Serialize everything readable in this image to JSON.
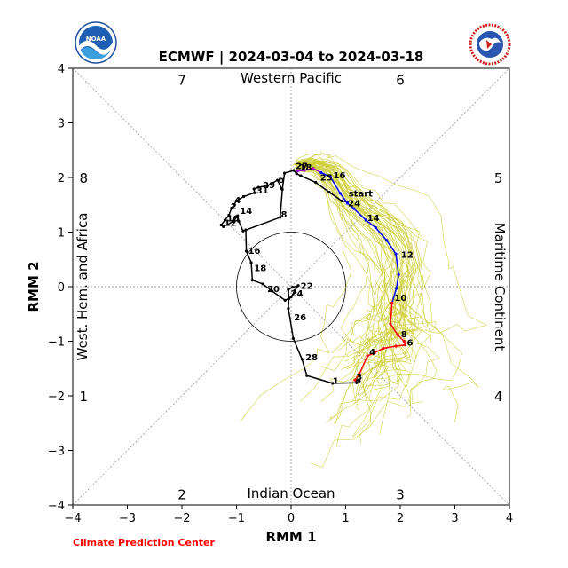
{
  "header": {
    "title": "ECMWF | 2024-03-04 to 2024-03-18",
    "credit": "Climate Prediction Center"
  },
  "chart_data": {
    "type": "line",
    "title": "ECMWF | 2024-03-04 to 2024-03-18",
    "xlabel": "RMM 1",
    "ylabel": "RMM 2",
    "xlim": [
      -4,
      4
    ],
    "ylim": [
      -4,
      4
    ],
    "xticks": [
      -4,
      -3,
      -2,
      -1,
      0,
      1,
      2,
      3,
      4
    ],
    "yticks": [
      -4,
      -3,
      -2,
      -1,
      0,
      1,
      2,
      3,
      4
    ],
    "grid": false,
    "phase_numbers": [
      {
        "label": "7",
        "x": -2.0,
        "y": 3.8
      },
      {
        "label": "6",
        "x": 2.0,
        "y": 3.8
      },
      {
        "label": "8",
        "x": -3.8,
        "y": 2.0
      },
      {
        "label": "5",
        "x": 3.8,
        "y": 2.0
      },
      {
        "label": "1",
        "x": -3.8,
        "y": -2.0
      },
      {
        "label": "4",
        "x": 3.8,
        "y": -2.0
      },
      {
        "label": "2",
        "x": -2.0,
        "y": -3.8
      },
      {
        "label": "3",
        "x": 2.0,
        "y": -3.8
      }
    ],
    "region_labels": {
      "top": "Western Pacific",
      "bottom": "Indian Ocean",
      "left": "West. Hem. and Africa",
      "right": "Maritime Continent"
    },
    "observed": {
      "name": "observed",
      "color": "#000000",
      "points": [
        {
          "x": -0.17,
          "y": 1.79
        },
        {
          "x": -0.25,
          "y": 1.95
        },
        {
          "x": -0.33,
          "y": 1.85
        },
        {
          "x": -0.52,
          "y": 1.8
        },
        {
          "x": -0.68,
          "y": 1.82
        },
        {
          "x": -0.67,
          "y": 1.74
        },
        {
          "x": -0.87,
          "y": 1.62
        },
        {
          "x": -0.98,
          "y": 1.56
        },
        {
          "x": -1.08,
          "y": 1.41
        },
        {
          "x": -1.16,
          "y": 1.27
        },
        {
          "x": -1.23,
          "y": 1.18
        },
        {
          "x": -1.28,
          "y": 1.13
        },
        {
          "x": -1.3,
          "y": 1.08
        },
        {
          "x": -1.08,
          "y": 1.32
        },
        {
          "x": -0.98,
          "y": 1.31
        },
        {
          "x": -0.85,
          "y": 1.0
        },
        {
          "x": -0.64,
          "y": 1.12
        },
        {
          "x": -0.2,
          "y": 1.25
        },
        {
          "x": -0.18,
          "y": 1.3
        },
        {
          "x": -0.12,
          "y": 1.88
        },
        {
          "x": -0.08,
          "y": 1.94
        },
        {
          "x": -0.04,
          "y": 1.99
        },
        {
          "x": 0.0,
          "y": 2.07
        },
        {
          "x": 0.08,
          "y": 2.12
        },
        {
          "x": 0.12,
          "y": 2.1
        },
        {
          "x": 0.15,
          "y": 2.04
        },
        {
          "x": 0.4,
          "y": 1.92
        },
        {
          "x": 0.65,
          "y": 1.76
        },
        {
          "x": 0.85,
          "y": 1.6
        },
        {
          "x": 1.02,
          "y": 1.53
        },
        {
          "x": 0.6,
          "y": 1.62
        }
      ],
      "path": [
        [
          -0.17,
          1.79
        ],
        [
          -0.25,
          1.95
        ],
        [
          -0.43,
          1.85
        ],
        [
          -0.6,
          1.82
        ],
        [
          -0.68,
          1.79
        ],
        [
          -0.67,
          1.72
        ],
        [
          -0.87,
          1.65
        ],
        [
          -1.0,
          1.57
        ],
        [
          -1.09,
          1.44
        ],
        [
          -1.14,
          1.31
        ],
        [
          -1.21,
          1.22
        ],
        [
          -1.28,
          1.13
        ],
        [
          -1.24,
          1.1
        ],
        [
          -1.05,
          1.2
        ],
        [
          -0.98,
          1.3
        ],
        [
          -0.96,
          1.2
        ],
        [
          -0.88,
          1.02
        ],
        [
          -0.2,
          1.27
        ],
        [
          -0.16,
          1.78
        ],
        [
          -0.12,
          2.08
        ],
        [
          0.05,
          2.13
        ],
        [
          0.1,
          2.07
        ],
        [
          0.18,
          2.03
        ],
        [
          0.45,
          1.91
        ],
        [
          0.7,
          1.73
        ],
        [
          0.93,
          1.57
        ],
        [
          1.03,
          1.55
        ]
      ],
      "labels": [
        {
          "text": "27",
          "x": 0.05,
          "y": 2.2
        },
        {
          "text": "29",
          "x": -0.55,
          "y": 1.85
        },
        {
          "text": "31",
          "x": -0.67,
          "y": 1.76
        },
        {
          "text": "6",
          "x": -0.27,
          "y": 1.95
        },
        {
          "text": "4",
          "x": -1.07,
          "y": 1.58
        },
        {
          "text": "2",
          "x": -1.14,
          "y": 1.46
        },
        {
          "text": "14",
          "x": -0.97,
          "y": 1.38
        },
        {
          "text": "10",
          "x": -1.21,
          "y": 1.24
        },
        {
          "text": "12",
          "x": -1.26,
          "y": 1.16
        },
        {
          "text": "8",
          "x": -0.22,
          "y": 1.32
        },
        {
          "text": "25",
          "x": 0.5,
          "y": 1.99
        }
      ]
    },
    "observed_lower": {
      "name": "observed",
      "color": "#000000",
      "path": [
        [
          -0.83,
          1.04
        ],
        [
          -0.82,
          0.65
        ],
        [
          -0.73,
          0.44
        ],
        [
          -0.71,
          0.12
        ],
        [
          -0.52,
          0.05
        ],
        [
          -0.35,
          -0.08
        ],
        [
          -0.11,
          -0.25
        ],
        [
          0.0,
          -0.19
        ],
        [
          0.07,
          -0.07
        ],
        [
          0.13,
          0.02
        ],
        [
          0.03,
          -0.01
        ],
        [
          -0.05,
          -0.05
        ],
        [
          -0.04,
          -0.22
        ],
        [
          -0.05,
          -0.4
        ],
        [
          0.04,
          -0.95
        ],
        [
          0.2,
          -1.33
        ],
        [
          0.29,
          -1.63
        ],
        [
          0.76,
          -1.77
        ],
        [
          1.2,
          -1.76
        ],
        [
          1.18,
          -1.71
        ],
        [
          1.25,
          -1.73
        ]
      ],
      "labels": [
        {
          "text": "16",
          "x": -0.82,
          "y": 0.65
        },
        {
          "text": "18",
          "x": -0.71,
          "y": 0.33
        },
        {
          "text": "20",
          "x": -0.47,
          "y": -0.05
        },
        {
          "text": "22",
          "x": 0.14,
          "y": 0.01
        },
        {
          "text": "24",
          "x": -0.04,
          "y": -0.13
        },
        {
          "text": "26",
          "x": 0.02,
          "y": -0.57
        },
        {
          "text": "28",
          "x": 0.23,
          "y": -1.3
        },
        {
          "text": "1",
          "x": 0.73,
          "y": -1.73
        },
        {
          "text": "3",
          "x": 1.16,
          "y": -1.66
        }
      ]
    },
    "forecast": {
      "name": "forecast",
      "start_label": "start",
      "start_label_pos": {
        "x": 1.02,
        "y": 1.7
      },
      "segments": [
        {
          "color": "#9900cc",
          "path": [
            [
              0.12,
              2.12
            ],
            [
              0.24,
              2.13
            ],
            [
              0.4,
              2.17
            ],
            [
              0.55,
              2.09
            ]
          ]
        },
        {
          "color": "#0000ff",
          "path": [
            [
              0.55,
              2.09
            ],
            [
              0.72,
              2.01
            ],
            [
              0.9,
              1.71
            ],
            [
              1.03,
              1.53
            ],
            [
              1.15,
              1.43
            ],
            [
              1.37,
              1.22
            ],
            [
              1.55,
              1.08
            ],
            [
              1.75,
              0.85
            ],
            [
              1.92,
              0.6
            ],
            [
              1.97,
              0.22
            ],
            [
              1.93,
              -0.03
            ],
            [
              1.85,
              -0.3
            ]
          ]
        },
        {
          "color": "#ff0000",
          "path": [
            [
              1.85,
              -0.3
            ],
            [
              1.82,
              -0.68
            ],
            [
              1.95,
              -0.88
            ],
            [
              2.07,
              -1.0
            ],
            [
              2.09,
              -1.07
            ],
            [
              1.92,
              -1.09
            ],
            [
              1.69,
              -1.13
            ],
            [
              1.53,
              -1.21
            ],
            [
              1.4,
              -1.27
            ],
            [
              1.25,
              -1.6
            ],
            [
              1.17,
              -1.71
            ]
          ]
        }
      ],
      "labels": [
        {
          "text": "18",
          "x": 0.12,
          "y": 2.18
        },
        {
          "text": "16",
          "x": 0.74,
          "y": 2.03
        },
        {
          "text": "24",
          "x": 1.01,
          "y": 1.52
        },
        {
          "text": "14",
          "x": 1.36,
          "y": 1.25
        },
        {
          "text": "12",
          "x": 1.98,
          "y": 0.58
        },
        {
          "text": "10",
          "x": 1.86,
          "y": -0.21
        },
        {
          "text": "8",
          "x": 1.98,
          "y": -0.88
        },
        {
          "text": "6",
          "x": 2.09,
          "y": -1.03
        },
        {
          "text": "4",
          "x": 1.4,
          "y": -1.2
        }
      ]
    },
    "ensemble": {
      "color": "#cccc33",
      "member_count": 50
    }
  }
}
